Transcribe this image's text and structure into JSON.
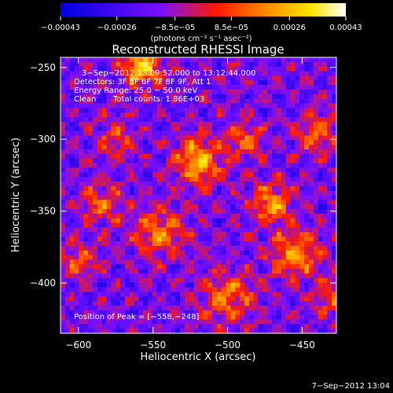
{
  "chart_data": {
    "type": "heatmap",
    "title": "Reconstructed RHESSI Image",
    "xlabel": "Heliocentric X (arcsec)",
    "ylabel": "Heliocentric Y (arcsec)",
    "xlim": [
      -612,
      -427
    ],
    "ylim": [
      -435,
      -243
    ],
    "x_ticks": [
      -600,
      -550,
      -500,
      -450
    ],
    "y_ticks": [
      -400,
      -350,
      -300,
      -250
    ],
    "x_tick_labels": [
      "−600",
      "−550",
      "−500",
      "−450"
    ],
    "y_tick_labels": [
      "−400",
      "−350",
      "−300",
      "−250"
    ],
    "colorbar": {
      "range": [
        -0.00043,
        0.00043
      ],
      "tick_values": [
        -0.00043,
        -0.00026,
        -8.5e-05,
        8.5e-05,
        0.00026,
        0.00043
      ],
      "tick_labels": [
        "−0.00043",
        "−0.00026",
        "−8.5e−05",
        "8.5e−05",
        "0.00026",
        "0.00043"
      ],
      "units": "(photons cm⁻² s⁻¹ asec⁻²)",
      "colors": [
        "#0000e0",
        "#7a10ff",
        "#ff1a00",
        "#ff8a00",
        "#ffe600",
        "#ffffff"
      ]
    },
    "peak_position": [
      -558,
      -248
    ],
    "annotations": {
      "time": "3−Sep−2012 13:09:52.000 to 13:12:44.000",
      "detectors": "Detectors: 3F 5F 6F 7F 8F 9F, Att 1",
      "energy": "Energy Range: 25.0 − 50.0 keV",
      "method": "Clean",
      "counts": "Total counts: 1.86E+03",
      "peak": "Position of Peak = [−558,−248]"
    },
    "footer_date": "7−Sep−2012 13:04"
  }
}
